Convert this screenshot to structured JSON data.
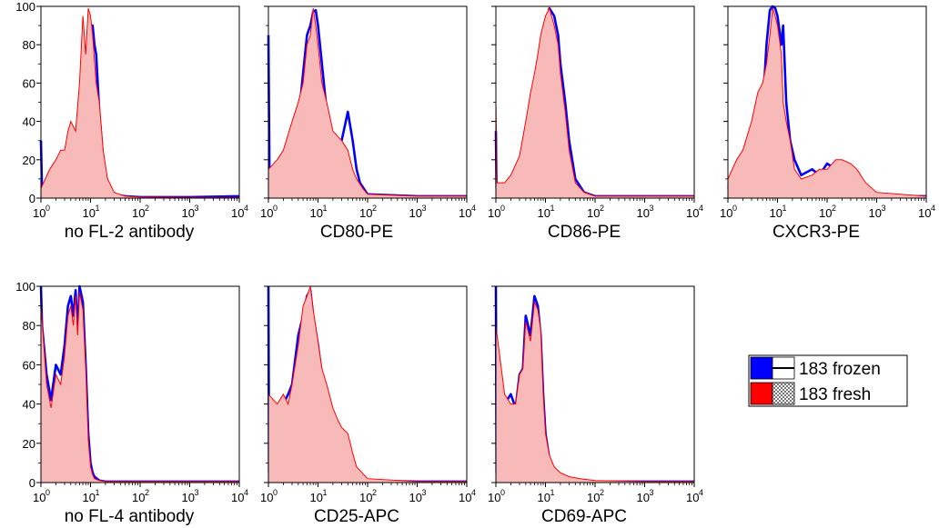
{
  "chart_data": [
    {
      "type": "area",
      "title": "no FL-2 antibody",
      "xscale": "log",
      "x_ticks": [
        "10^0",
        "10^1",
        "10^2",
        "10^3",
        "10^4"
      ],
      "xlim": [
        1,
        10000
      ],
      "ylim": [
        0,
        100
      ],
      "y_ticks": [
        "0",
        "20",
        "40",
        "60",
        "80",
        "100"
      ],
      "series": [
        {
          "name": "183 frozen",
          "style": "line",
          "x": [
            1,
            1.05,
            1.3,
            1.6,
            2,
            2.5,
            3,
            3.5,
            4,
            5,
            6,
            7,
            8,
            9,
            10,
            11,
            12,
            13,
            15,
            18,
            22,
            30,
            50,
            100,
            1000,
            10000
          ],
          "y": [
            30,
            4,
            8,
            9,
            10,
            14,
            17,
            20,
            25,
            28,
            40,
            65,
            75,
            82,
            88,
            90,
            80,
            75,
            45,
            20,
            8,
            2,
            1,
            0.5,
            0.5,
            1
          ]
        },
        {
          "name": "183 fresh",
          "style": "filled",
          "x": [
            1,
            1.5,
            2,
            2.5,
            3,
            3.5,
            4,
            5,
            6,
            7,
            7.5,
            8,
            9,
            10,
            11,
            12,
            13,
            15,
            18,
            22,
            30,
            50,
            100,
            1000,
            10000
          ],
          "y": [
            5,
            15,
            20,
            25,
            25,
            35,
            40,
            35,
            60,
            95,
            85,
            75,
            99,
            95,
            85,
            72,
            60,
            50,
            25,
            10,
            3,
            1,
            0.5,
            0.3,
            0.3
          ]
        }
      ]
    },
    {
      "type": "area",
      "title": "CD80-PE",
      "xscale": "log",
      "x_ticks": [
        "10^0",
        "10^1",
        "10^2",
        "10^3",
        "10^4"
      ],
      "xlim": [
        1,
        10000
      ],
      "ylim": [
        0,
        100
      ],
      "y_ticks": [],
      "series": [
        {
          "name": "183 frozen",
          "style": "line",
          "x": [
            1,
            1.05,
            1.5,
            2,
            3,
            4,
            5,
            6,
            7,
            8,
            9,
            10,
            12,
            15,
            20,
            30,
            40,
            50,
            60,
            70,
            100,
            1000,
            10000
          ],
          "y": [
            85,
            10,
            15,
            18,
            25,
            40,
            65,
            85,
            90,
            97,
            98,
            90,
            70,
            45,
            25,
            30,
            45,
            30,
            15,
            8,
            2,
            1,
            1
          ]
        },
        {
          "name": "183 fresh",
          "style": "filled",
          "x": [
            1,
            1.5,
            2,
            3,
            4,
            5,
            6,
            7,
            8,
            9,
            10,
            12,
            15,
            20,
            30,
            40,
            50,
            60,
            80,
            100,
            1000,
            10000
          ],
          "y": [
            15,
            20,
            25,
            40,
            50,
            60,
            80,
            85,
            99,
            90,
            80,
            60,
            50,
            35,
            30,
            25,
            15,
            10,
            5,
            2,
            1,
            1
          ]
        }
      ]
    },
    {
      "type": "area",
      "title": "CD86-PE",
      "xscale": "log",
      "x_ticks": [
        "10^0",
        "10^1",
        "10^2",
        "10^3",
        "10^4"
      ],
      "xlim": [
        1,
        10000
      ],
      "ylim": [
        0,
        100
      ],
      "y_ticks": [],
      "series": [
        {
          "name": "183 frozen",
          "style": "line",
          "x": [
            1,
            1.03,
            1.5,
            2,
            3,
            4,
            5,
            6,
            7,
            8,
            10,
            12,
            15,
            18,
            20,
            25,
            30,
            40,
            60,
            100,
            1000,
            10000
          ],
          "y": [
            35,
            5,
            6,
            10,
            20,
            35,
            50,
            60,
            70,
            80,
            90,
            99,
            95,
            85,
            70,
            50,
            30,
            10,
            3,
            1,
            1,
            1
          ]
        },
        {
          "name": "183 fresh",
          "style": "filled",
          "x": [
            1,
            1.05,
            1.5,
            2,
            3,
            4,
            5,
            6,
            7,
            8,
            10,
            12,
            15,
            18,
            20,
            25,
            30,
            40,
            60,
            100,
            1000,
            10000
          ],
          "y": [
            50,
            8,
            8,
            12,
            22,
            40,
            55,
            65,
            75,
            85,
            95,
            99,
            90,
            80,
            65,
            45,
            25,
            8,
            3,
            1,
            1,
            1
          ]
        }
      ]
    },
    {
      "type": "area",
      "title": "CXCR3-PE",
      "xscale": "log",
      "x_ticks": [
        "10^0",
        "10^1",
        "10^2",
        "10^3",
        "10^4"
      ],
      "xlim": [
        1,
        10000
      ],
      "ylim": [
        0,
        100
      ],
      "y_ticks": [],
      "series": [
        {
          "name": "183 frozen",
          "style": "line",
          "x": [
            1,
            1.5,
            2,
            3,
            4,
            5,
            6,
            7,
            8,
            9,
            10,
            12,
            13,
            15,
            18,
            22,
            30,
            50,
            70,
            100,
            150,
            200,
            300,
            400,
            600,
            1000,
            10000
          ],
          "y": [
            5,
            10,
            15,
            25,
            40,
            45,
            80,
            98,
            100,
            99,
            95,
            80,
            90,
            50,
            30,
            20,
            12,
            15,
            12,
            18,
            15,
            10,
            8,
            5,
            2,
            1,
            1
          ]
        },
        {
          "name": "183 fresh",
          "style": "filled",
          "x": [
            1,
            1.5,
            2,
            3,
            4,
            5,
            6,
            7,
            8,
            9,
            10,
            12,
            13,
            15,
            18,
            22,
            30,
            50,
            70,
            100,
            150,
            200,
            300,
            400,
            600,
            1000,
            10000
          ],
          "y": [
            10,
            20,
            25,
            40,
            55,
            60,
            70,
            85,
            99,
            95,
            90,
            75,
            50,
            40,
            30,
            15,
            10,
            12,
            15,
            15,
            20,
            20,
            18,
            15,
            8,
            3,
            1
          ]
        }
      ]
    },
    {
      "type": "area",
      "title": "no FL-4 antibody",
      "xscale": "log",
      "x_ticks": [
        "10^0",
        "10^1",
        "10^2",
        "10^3",
        "10^4"
      ],
      "xlim": [
        1,
        10000
      ],
      "ylim": [
        0,
        100
      ],
      "y_ticks": [
        "0",
        "20",
        "40",
        "60",
        "80",
        "100"
      ],
      "series": [
        {
          "name": "183 frozen",
          "style": "line",
          "x": [
            1,
            1.05,
            1.3,
            1.6,
            2,
            2.5,
            3,
            3.5,
            4,
            4.5,
            5,
            5.5,
            6,
            7,
            8,
            9,
            10,
            11,
            12,
            15,
            20,
            30,
            100,
            1000,
            10000
          ],
          "y": [
            100,
            80,
            55,
            42,
            60,
            55,
            70,
            90,
            95,
            85,
            98,
            75,
            100,
            92,
            60,
            25,
            10,
            5,
            3,
            1,
            0.5,
            0.5,
            0.5,
            0.5,
            0.5
          ]
        },
        {
          "name": "183 fresh",
          "style": "filled",
          "x": [
            1,
            1.3,
            1.6,
            2,
            2.5,
            3,
            3.5,
            4,
            4.5,
            5,
            5.5,
            6,
            7,
            8,
            9,
            10,
            11,
            12,
            15,
            20,
            30,
            100,
            1000,
            10000
          ],
          "y": [
            90,
            50,
            38,
            55,
            50,
            65,
            85,
            90,
            80,
            95,
            75,
            97,
            88,
            58,
            22,
            8,
            4,
            2,
            1,
            0.5,
            0.5,
            0.5,
            0.5,
            0.5
          ]
        }
      ]
    },
    {
      "type": "area",
      "title": "CD25-APC",
      "xscale": "log",
      "x_ticks": [
        "10^0",
        "10^1",
        "10^2",
        "10^3",
        "10^4"
      ],
      "xlim": [
        1,
        10000
      ],
      "ylim": [
        0,
        100
      ],
      "y_ticks": [],
      "series": [
        {
          "name": "183 frozen",
          "style": "line",
          "x": [
            1,
            1.03,
            1.5,
            2,
            2.5,
            3,
            4,
            5,
            6,
            7,
            8,
            10,
            12,
            15,
            20,
            25,
            30,
            40,
            50,
            60,
            100,
            1000,
            10000
          ],
          "y": [
            100,
            5,
            30,
            40,
            45,
            50,
            75,
            85,
            95,
            98,
            85,
            70,
            55,
            45,
            32,
            25,
            22,
            15,
            10,
            5,
            1,
            0.5,
            0.5
          ]
        },
        {
          "name": "183 fresh",
          "style": "filled",
          "x": [
            1,
            1.5,
            2,
            2.5,
            3,
            4,
            5,
            6,
            7,
            8,
            10,
            12,
            15,
            20,
            25,
            30,
            40,
            50,
            60,
            100,
            1000,
            10000
          ],
          "y": [
            45,
            40,
            45,
            40,
            50,
            70,
            90,
            95,
            100,
            88,
            72,
            58,
            50,
            38,
            32,
            28,
            25,
            15,
            8,
            2,
            0.5,
            0.5
          ]
        }
      ]
    },
    {
      "type": "area",
      "title": "CD69-APC",
      "xscale": "log",
      "x_ticks": [
        "10^0",
        "10^1",
        "10^2",
        "10^3",
        "10^4"
      ],
      "xlim": [
        1,
        10000
      ],
      "ylim": [
        0,
        100
      ],
      "y_ticks": [],
      "series": [
        {
          "name": "183 frozen",
          "style": "line",
          "x": [
            1,
            1.03,
            1.5,
            2,
            2.5,
            3,
            3.5,
            4,
            5,
            6,
            7,
            8,
            9,
            10,
            12,
            15,
            20,
            30,
            50,
            100,
            1000,
            10000
          ],
          "y": [
            100,
            5,
            40,
            45,
            38,
            55,
            58,
            85,
            75,
            95,
            90,
            75,
            45,
            25,
            12,
            6,
            3,
            2,
            1,
            0.5,
            0.5,
            0.5
          ]
        },
        {
          "name": "183 fresh",
          "style": "filled",
          "x": [
            1,
            1.5,
            2,
            2.5,
            3,
            3.5,
            4,
            5,
            6,
            7,
            8,
            9,
            10,
            12,
            15,
            20,
            30,
            50,
            100,
            1000,
            10000
          ],
          "y": [
            80,
            45,
            40,
            40,
            55,
            58,
            82,
            72,
            92,
            88,
            78,
            45,
            25,
            14,
            8,
            5,
            3,
            2,
            1,
            0.5,
            0.5
          ]
        }
      ]
    }
  ],
  "legend": {
    "entries": [
      {
        "label": "183 frozen",
        "color": "#0000ff",
        "style": "line"
      },
      {
        "label": "183 fresh",
        "color": "#ff0000",
        "style": "filled"
      }
    ]
  },
  "colors": {
    "frozen_line": "#0000ff",
    "fresh_line": "#ff0000",
    "fresh_fill": "#f8b9b9"
  }
}
